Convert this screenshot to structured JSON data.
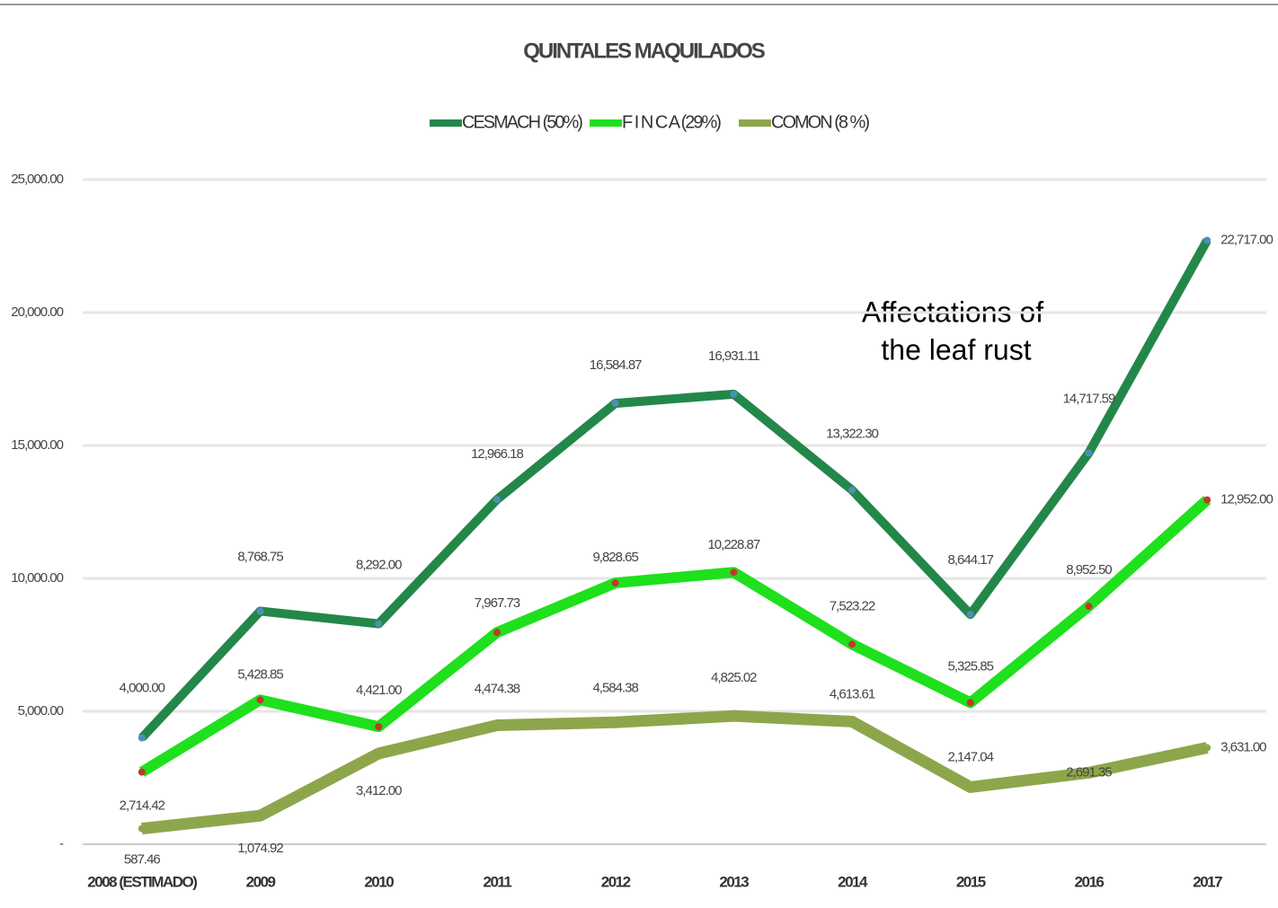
{
  "chart_data": {
    "type": "line",
    "title": "QUINTALES MAQUILADOS",
    "annotation_lines": [
      "Affectations of",
      "the leaf rust"
    ],
    "categories": [
      "2008 (ESTIMADO)",
      "2009",
      "2010",
      "2011",
      "2012",
      "2013",
      "2014",
      "2015",
      "2016",
      "2017"
    ],
    "series": [
      {
        "name": "CESMACH (50%)",
        "color": "#23874a",
        "marker_color": "#4f8fb5",
        "values": [
          4000.0,
          8768.75,
          8292.0,
          12966.18,
          16584.87,
          16931.11,
          13322.3,
          8644.17,
          14717.59,
          22717.0
        ],
        "value_labels": [
          "4,000.00",
          "8,768.75",
          "8,292.00",
          "12,966.18",
          "16,584.87",
          "16,931.11",
          "13,322.30",
          "8,644.17",
          "14,717.59",
          "22,717.00"
        ]
      },
      {
        "name": "F I N C A (29%)",
        "color": "#1fe01c",
        "marker_color": "#c0392b",
        "values": [
          2714.42,
          5428.85,
          4421.0,
          7967.73,
          9828.65,
          10228.87,
          7523.22,
          5325.85,
          8952.5,
          12952.0
        ],
        "value_labels": [
          "2,714.42",
          "5,428.85",
          "4,421.00",
          "7,967.73",
          "9,828.65",
          "10,228.87",
          "7,523.22",
          "5,325.85",
          "8,952.50",
          "12,952.00"
        ]
      },
      {
        "name": "COMON (8 %)",
        "color": "#8ea64b",
        "marker_color": "#8ea64b",
        "values": [
          587.46,
          1074.92,
          3412.0,
          4474.38,
          4584.38,
          4825.02,
          4613.61,
          2147.04,
          2691.35,
          3631.0
        ],
        "value_labels": [
          "587.46",
          "1,074.92",
          "3,412.00",
          "4,474.38",
          "4,584.38",
          "4,825.02",
          "4,613.61",
          "2,147.04",
          "2,691.35",
          "3,631.00"
        ]
      }
    ],
    "ylim": [
      0,
      25000
    ],
    "yticks": [
      {
        "value": 0,
        "label": "-"
      },
      {
        "value": 5000,
        "label": "5,000.00"
      },
      {
        "value": 10000,
        "label": "10,000.00"
      },
      {
        "value": 15000,
        "label": "15,000.00"
      },
      {
        "value": 20000,
        "label": "20,000.00"
      },
      {
        "value": 25000,
        "label": "25,000.00"
      }
    ],
    "grid": true,
    "legend": "top"
  }
}
